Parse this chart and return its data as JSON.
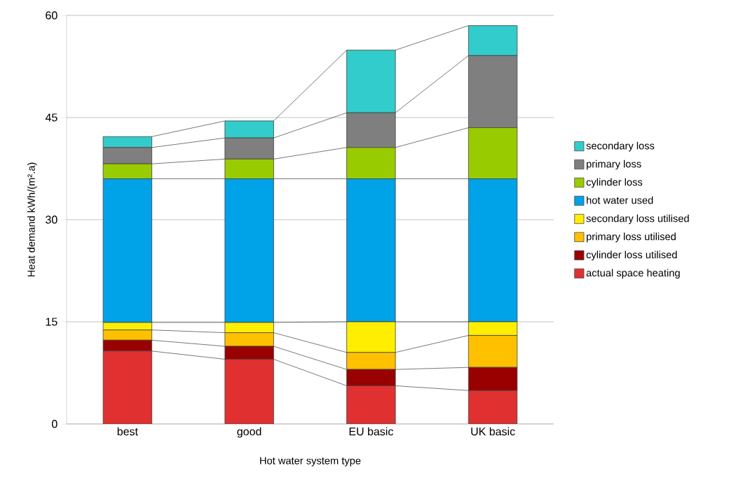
{
  "chart_data": {
    "type": "bar",
    "stacked": true,
    "xlabel": "Hot water system type",
    "ylabel": "Heat demand kWh/(m².a)",
    "categories": [
      "best",
      "good",
      "EU basic",
      "UK basic"
    ],
    "series": [
      {
        "name": "actual space heating",
        "color": "#e03030",
        "values": [
          10.7,
          9.5,
          5.6,
          4.9
        ]
      },
      {
        "name": "cylinder loss utilised",
        "color": "#990000",
        "values": [
          1.6,
          1.9,
          2.4,
          3.4
        ]
      },
      {
        "name": "primary loss utilised",
        "color": "#ffc000",
        "values": [
          1.5,
          2.0,
          2.5,
          4.7
        ]
      },
      {
        "name": "secondary loss utilised",
        "color": "#ffee00",
        "values": [
          1.1,
          1.5,
          4.5,
          2.0
        ]
      },
      {
        "name": "hot water used",
        "color": "#00a2e8",
        "values": [
          21.1,
          21.1,
          21.0,
          21.0
        ]
      },
      {
        "name": "cylinder loss",
        "color": "#99cc00",
        "values": [
          2.2,
          2.9,
          4.6,
          7.5
        ]
      },
      {
        "name": "primary loss",
        "color": "#7f7f7f",
        "values": [
          2.4,
          3.1,
          5.1,
          10.6
        ]
      },
      {
        "name": "secondary loss",
        "color": "#33cccc",
        "values": [
          1.6,
          2.5,
          9.2,
          4.4
        ]
      }
    ],
    "ylim": [
      0,
      60
    ],
    "yticks": [
      0,
      15,
      30,
      45,
      60
    ],
    "grid": "y",
    "legend": "right"
  }
}
